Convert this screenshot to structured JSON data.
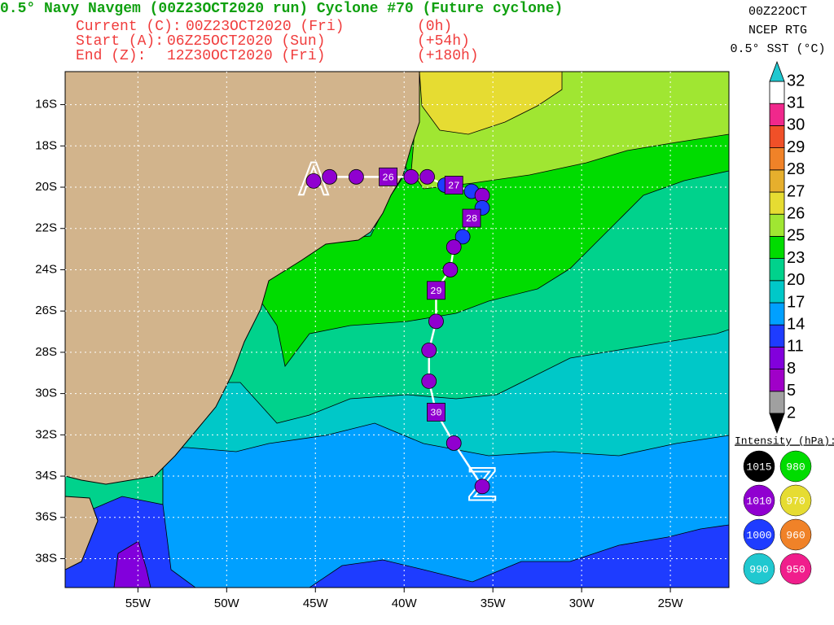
{
  "header": {
    "title": "0.5° Navy Navgem (00Z23OCT2020 run) Cyclone #70 (Future cyclone)",
    "rows": [
      {
        "label": "Current (C):",
        "time": "00Z23OCT2020 (Fri)",
        "offset": "(0h)"
      },
      {
        "label": "Start (A):",
        "time": "06Z25OCT2020 (Sun)",
        "offset": "(+54h)"
      },
      {
        "label": "End (Z):",
        "time": "12Z30OCT2020 (Fri)",
        "offset": "(+180h)"
      }
    ]
  },
  "sst_legend": {
    "lines": [
      "00Z22OCT",
      "NCEP RTG",
      "0.5° SST (°C)"
    ],
    "levels": [
      2,
      5,
      8,
      11,
      14,
      17,
      20,
      23,
      25,
      26,
      27,
      28,
      29,
      30,
      31,
      32
    ],
    "colors": [
      "#a0a0a0",
      "#a000c8",
      "#8200dc",
      "#1e3cff",
      "#00a0ff",
      "#00c8c8",
      "#00d28c",
      "#00dc00",
      "#a0e632",
      "#e6dc32",
      "#e6af2d",
      "#f08228",
      "#f05028",
      "#f0288c",
      "#ffffff"
    ],
    "under_color": "#000000",
    "over_color": "#20c8d0"
  },
  "intensity_legend": {
    "title": "Intensity (hPa):",
    "items": [
      {
        "value": 1015,
        "color": "#000000"
      },
      {
        "value": 980,
        "color": "#00dc00"
      },
      {
        "value": 1010,
        "color": "#9000d0"
      },
      {
        "value": 970,
        "color": "#e6dc32"
      },
      {
        "value": 1000,
        "color": "#1e3cff"
      },
      {
        "value": 960,
        "color": "#f08228"
      },
      {
        "value": 990,
        "color": "#20c8d0"
      },
      {
        "value": 950,
        "color": "#f01e8c"
      }
    ]
  },
  "map": {
    "lonlim": [
      -59.1,
      -21.7
    ],
    "latlim": [
      -39.4,
      -14.4
    ],
    "lonticks": [
      {
        "value": -55,
        "label": "55W"
      },
      {
        "value": -50,
        "label": "50W"
      },
      {
        "value": -45,
        "label": "45W"
      },
      {
        "value": -40,
        "label": "40W"
      },
      {
        "value": -35,
        "label": "35W"
      },
      {
        "value": -30,
        "label": "30W"
      },
      {
        "value": -25,
        "label": "25W"
      }
    ],
    "latticks": [
      {
        "value": -16,
        "label": "16S"
      },
      {
        "value": -18,
        "label": "18S"
      },
      {
        "value": -20,
        "label": "20S"
      },
      {
        "value": -22,
        "label": "22S"
      },
      {
        "value": -24,
        "label": "24S"
      },
      {
        "value": -26,
        "label": "26S"
      },
      {
        "value": -28,
        "label": "28S"
      },
      {
        "value": -30,
        "label": "30S"
      },
      {
        "value": -32,
        "label": "32S"
      },
      {
        "value": -34,
        "label": "34S"
      },
      {
        "value": -36,
        "label": "36S"
      },
      {
        "value": -38,
        "label": "38S"
      }
    ],
    "grid": true,
    "start_marker": {
      "label": "A",
      "lon": -45.1,
      "lat": -19.7
    },
    "end_marker": {
      "label": "Z",
      "lon": -35.6,
      "lat": -34.5
    },
    "track": [
      {
        "lon": -45.1,
        "lat": -19.7,
        "intensity": 1010
      },
      {
        "lon": -44.2,
        "lat": -19.5,
        "intensity": 1010
      },
      {
        "lon": -42.7,
        "lat": -19.5,
        "intensity": 1010
      },
      {
        "lon": -40.9,
        "lat": -19.5,
        "intensity": 1010,
        "label": "26"
      },
      {
        "lon": -39.6,
        "lat": -19.5,
        "intensity": 1010
      },
      {
        "lon": -38.7,
        "lat": -19.5,
        "intensity": 1010
      },
      {
        "lon": -37.7,
        "lat": -19.9,
        "intensity": 1000
      },
      {
        "lon": -37.2,
        "lat": -19.9,
        "intensity": 1010,
        "label": "27"
      },
      {
        "lon": -36.2,
        "lat": -20.2,
        "intensity": 1000
      },
      {
        "lon": -35.6,
        "lat": -20.4,
        "intensity": 1010
      },
      {
        "lon": -35.6,
        "lat": -21.0,
        "intensity": 1000
      },
      {
        "lon": -36.2,
        "lat": -21.5,
        "intensity": 1010,
        "label": "28"
      },
      {
        "lon": -36.7,
        "lat": -22.4,
        "intensity": 1000
      },
      {
        "lon": -37.2,
        "lat": -22.9,
        "intensity": 1010
      },
      {
        "lon": -37.4,
        "lat": -24.0,
        "intensity": 1010
      },
      {
        "lon": -38.2,
        "lat": -25.0,
        "intensity": 1010,
        "label": "29"
      },
      {
        "lon": -38.2,
        "lat": -26.5,
        "intensity": 1010
      },
      {
        "lon": -38.6,
        "lat": -27.9,
        "intensity": 1010
      },
      {
        "lon": -38.6,
        "lat": -29.4,
        "intensity": 1010
      },
      {
        "lon": -38.2,
        "lat": -30.9,
        "intensity": 1010,
        "label": "30"
      },
      {
        "lon": -37.2,
        "lat": -32.4,
        "intensity": 1010
      },
      {
        "lon": -35.6,
        "lat": -34.5,
        "intensity": 1010
      }
    ]
  }
}
